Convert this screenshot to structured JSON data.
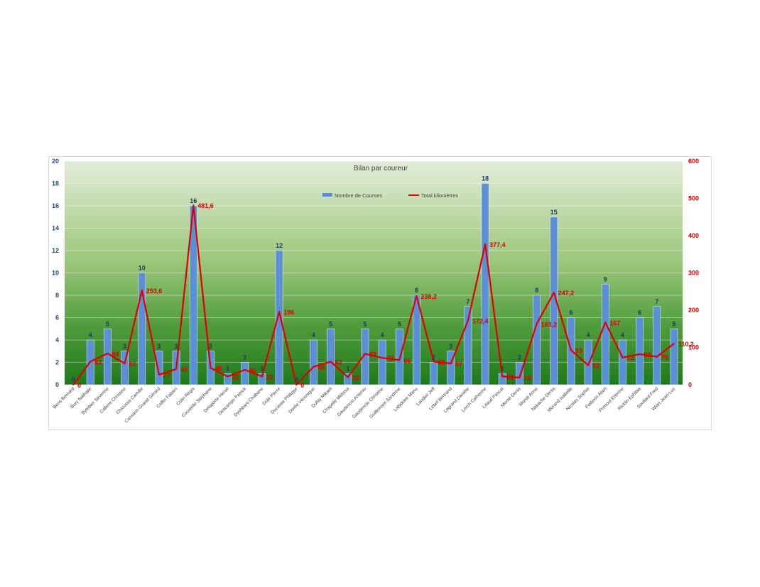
{
  "chart_data": {
    "type": "bar",
    "title": "Bilan par coureur",
    "legend_position": "top",
    "grid": true,
    "categories": [
      "Bens Bernard",
      "Bury Nathalie",
      "Bytebier Séverine",
      "Callens Christine",
      "Chiousse Camille",
      "Cassarin-Grand Gérard",
      "Coffin Fabien",
      "Colin Régis",
      "Coustelle Stéphane",
      "Delaporte Hervé",
      "Descamps Patrick",
      "Dyshbani Chabane",
      "Dolé Pierre",
      "Ducasse Philippe",
      "Dorée Véronique",
      "Dufay Mikael",
      "Chapelle Mélissa",
      "Gaudencio Antonio",
      "Gaudencio Christine",
      "Guillemant Sandrine",
      "Labidoire Manu",
      "Landier Jeff",
      "Lebel Bertrand",
      "Legrand Danièle",
      "Lerch Catherine",
      "Litaud Pascal",
      "Monté Denis",
      "Monté Anne",
      "Nakache Denis",
      "Morand Isabelle",
      "Nicolas Sophie",
      "Podevin Alain",
      "Primout Etienne",
      "Ricklin Ephibia",
      "Soullard Fred",
      "Wiart Jean-Luc"
    ],
    "y_left": {
      "min": 0,
      "max": 20,
      "step": 2,
      "ticks": [
        "0",
        "2",
        "4",
        "6",
        "8",
        "10",
        "12",
        "14",
        "16",
        "18",
        "20"
      ],
      "color": "#1f4e9c"
    },
    "y_right": {
      "min": 0,
      "max": 600,
      "step": 100,
      "ticks": [
        "0",
        "100",
        "200",
        "300",
        "400",
        "500",
        "600"
      ],
      "color": "#e00000"
    },
    "series": [
      {
        "name": "Nombre de Courses",
        "kind": "bar",
        "axis": "left",
        "color": "#5b8fd6",
        "values": [
          0,
          4,
          5,
          3,
          10,
          3,
          3,
          16,
          3,
          1,
          2,
          1,
          12,
          0,
          4,
          5,
          1,
          5,
          4,
          5,
          8,
          2,
          3,
          7,
          18,
          1,
          2,
          8,
          15,
          6,
          4,
          9,
          4,
          6,
          7,
          5
        ],
        "labels": [
          "0",
          "4",
          "5",
          "3",
          "10",
          "3",
          "3",
          "16",
          "3",
          "1",
          "2",
          "1",
          "12",
          "0",
          "4",
          "5",
          "1",
          "5",
          "4",
          "5",
          "8",
          "2",
          "3",
          "7",
          "18",
          "1",
          "2",
          "8",
          "15",
          "6",
          "4",
          "9",
          "4",
          "6",
          "7",
          "5"
        ]
      },
      {
        "name": "Total kilomètres",
        "kind": "line",
        "axis": "right",
        "color": "#e00000",
        "values": [
          0,
          62,
          84,
          57,
          253.6,
          27,
          42,
          481.6,
          45,
          22,
          40,
          22,
          196,
          0,
          48,
          62,
          20,
          83,
          72,
          66,
          238.2,
          62,
          57,
          172.4,
          377.4,
          22,
          19,
          163.2,
          247.2,
          93,
          52,
          167,
          73,
          82,
          75,
          110.2
        ],
        "labels": [
          "0",
          "62",
          "84",
          "57",
          "253,6",
          "27",
          "42",
          "481,6",
          "45",
          "22",
          "40",
          "22",
          "196",
          "0",
          "48",
          "62",
          "20",
          "83",
          "72",
          "66",
          "238,2",
          "62",
          "57",
          "172,4",
          "377,4",
          "22",
          "19",
          "163,2",
          "247,2",
          "93",
          "52",
          "167",
          "73",
          "82",
          "75",
          "110,2"
        ]
      }
    ]
  }
}
